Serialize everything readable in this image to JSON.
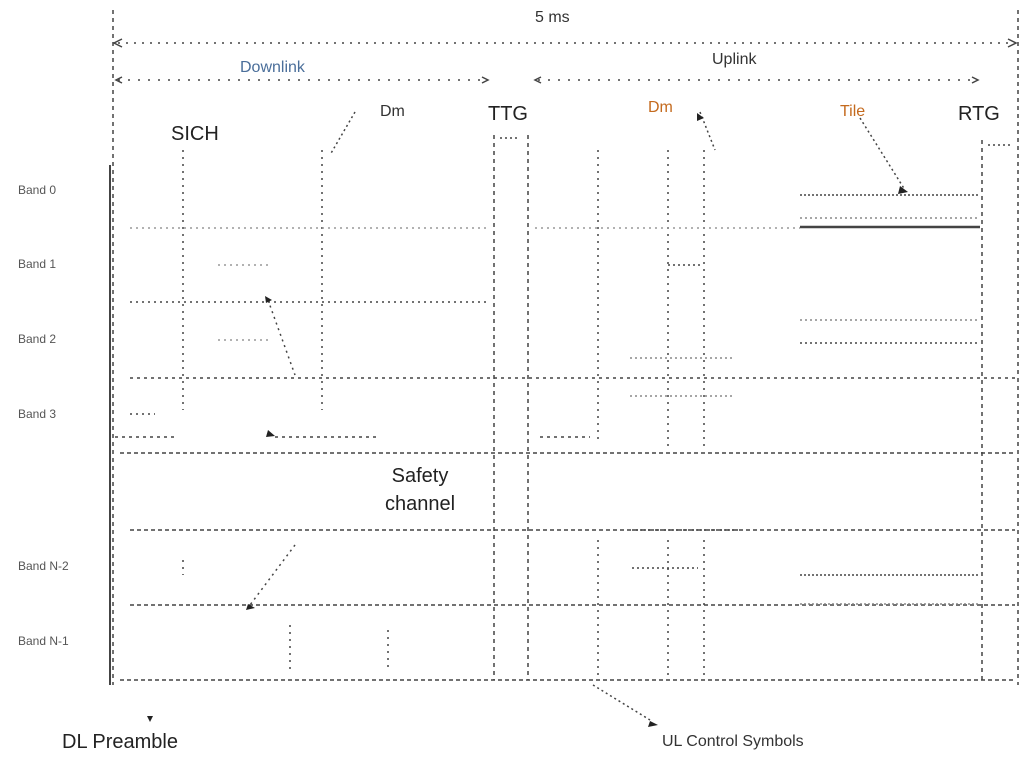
{
  "frame": {
    "duration": "5 ms"
  },
  "sections": {
    "downlink": "Downlink",
    "uplink": "Uplink"
  },
  "gaps": {
    "ttg": "TTG",
    "rtg": "RTG"
  },
  "fields": {
    "sich": "SICH",
    "dm_left": "Dm",
    "dm_right": "Dm",
    "tile": "Tile"
  },
  "bands": [
    "Band 0",
    "Band 1",
    "Band 2",
    "Band 3"
  ],
  "safety_channel": {
    "line1": "Safety",
    "line2": "channel"
  },
  "extra_bands": [
    "Band N-2",
    "Band N-1"
  ],
  "footer": {
    "dl_preamble": "DL Preamble",
    "ul_control_symbols": "UL Control Symbols"
  },
  "colors": {
    "line": "#444444",
    "grid": "#888888",
    "accent_orange": "#c46a1e",
    "accent_blue": "#4a6e9a"
  }
}
